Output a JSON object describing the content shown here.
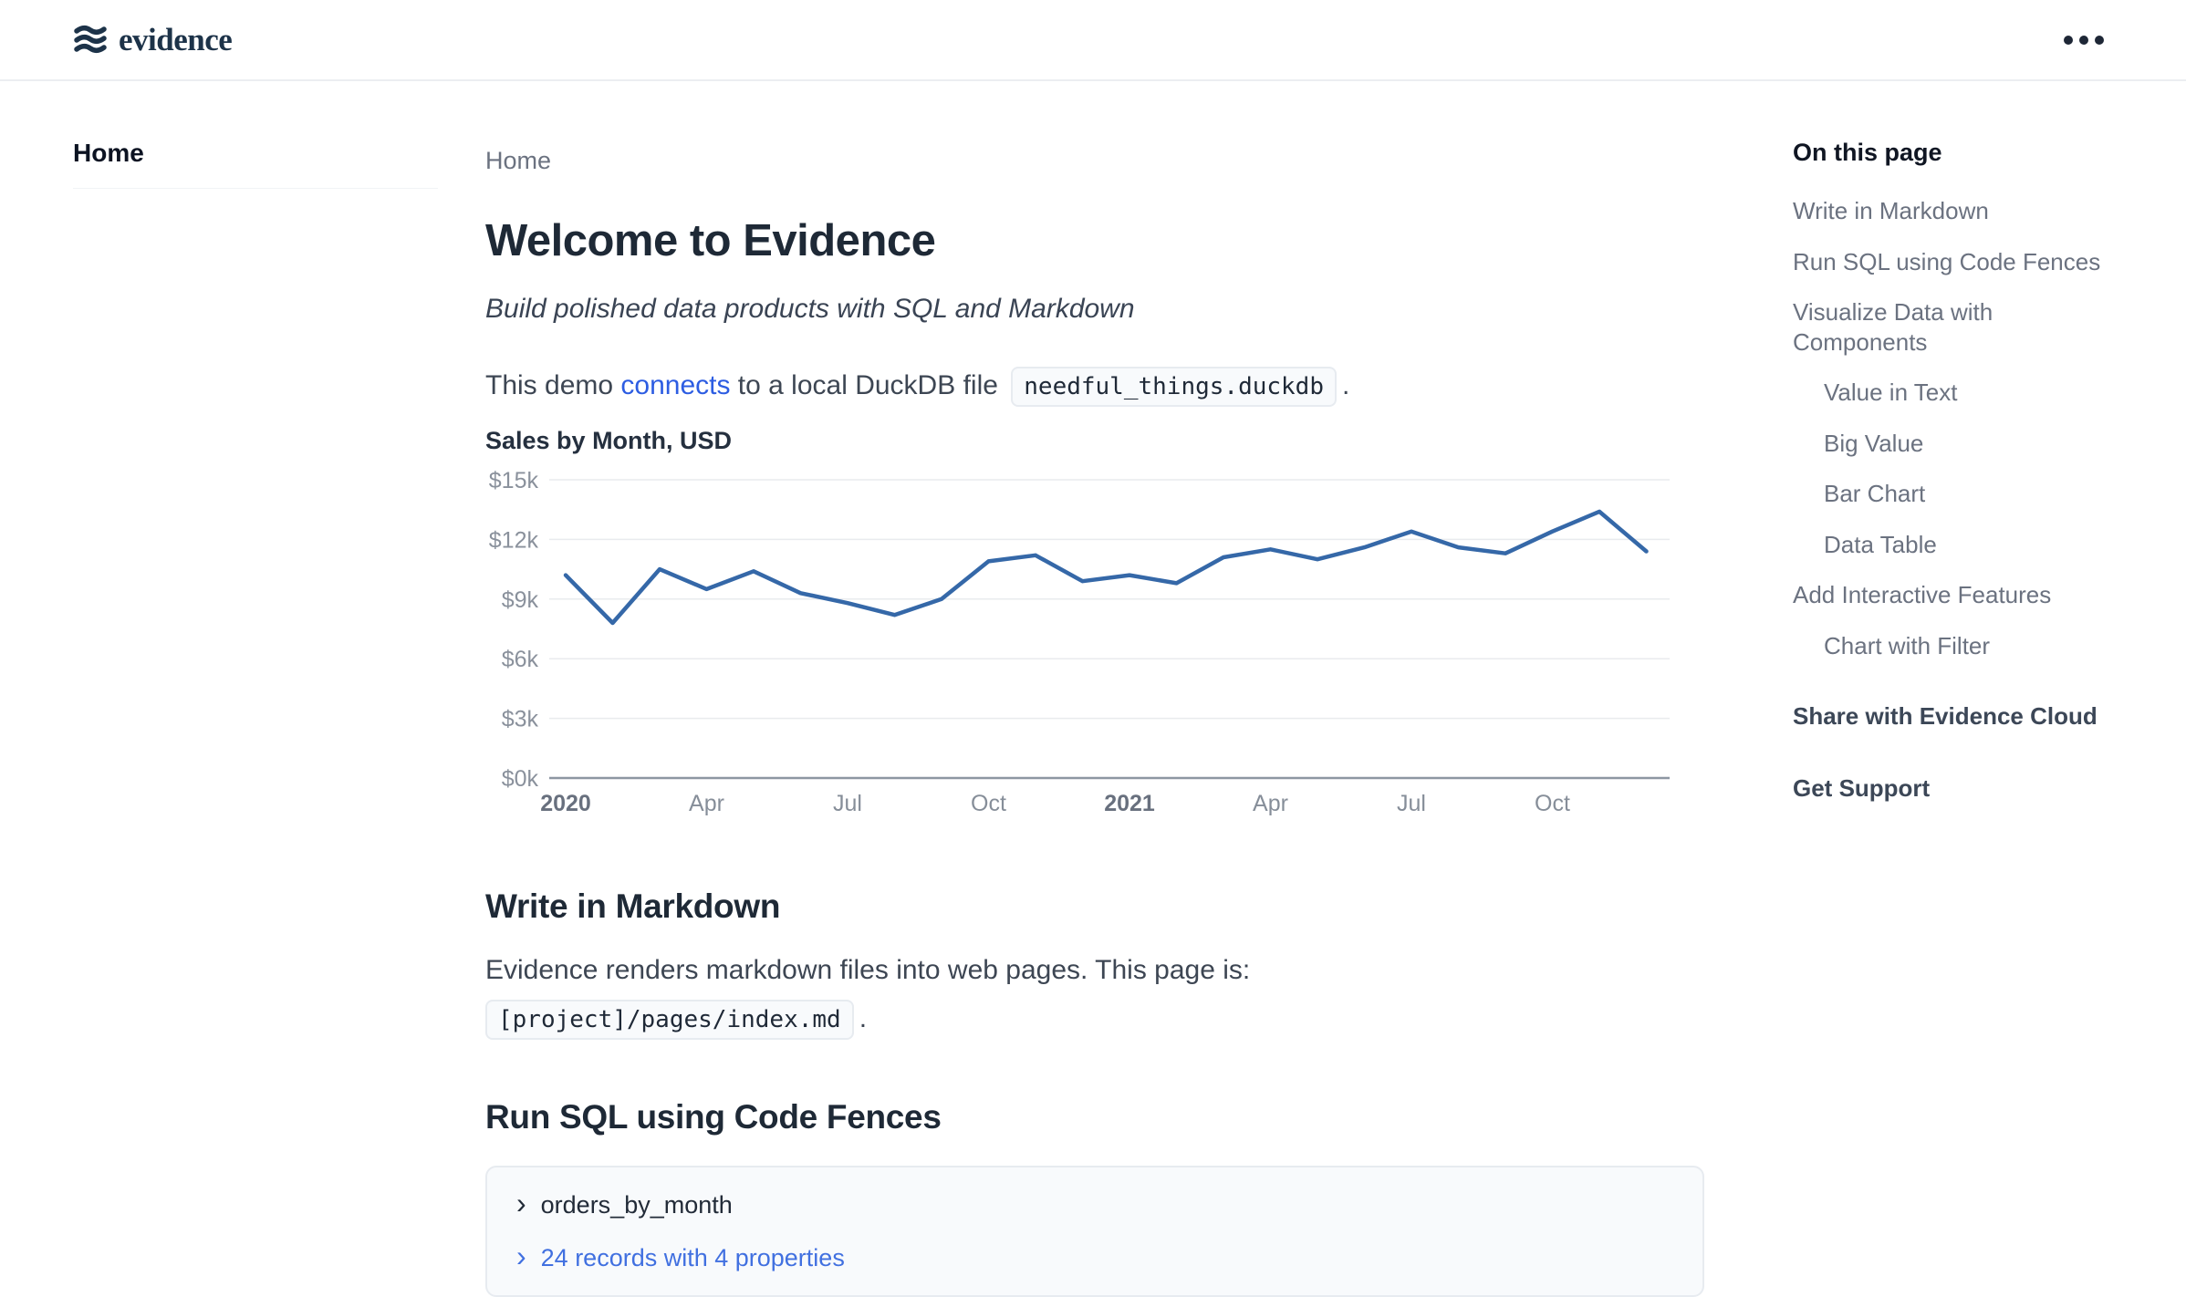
{
  "header": {
    "logo_text": "evidence"
  },
  "sidebar": {
    "items": [
      {
        "label": "Home",
        "active": true
      }
    ]
  },
  "main": {
    "breadcrumb": "Home",
    "title": "Welcome to Evidence",
    "subtitle": "Build polished data products with SQL and Markdown",
    "intro": {
      "pre": "This demo ",
      "link": "connects",
      "mid": " to a local DuckDB file ",
      "code": "needful_things.duckdb",
      "post": "."
    },
    "sections": {
      "markdown": {
        "heading": "Write in Markdown",
        "body": "Evidence renders markdown files into web pages. This page is:",
        "code": "[project]/pages/index.md",
        "post": "."
      },
      "sql": {
        "heading": "Run SQL using Code Fences",
        "query_name": "orders_by_month",
        "records_link": "24 records with 4 properties",
        "chevron": "›"
      }
    }
  },
  "chart_data": {
    "type": "line",
    "title": "Sales by Month, USD",
    "x": [
      "Jan 2020",
      "Feb 2020",
      "Mar 2020",
      "Apr 2020",
      "May 2020",
      "Jun 2020",
      "Jul 2020",
      "Aug 2020",
      "Sep 2020",
      "Oct 2020",
      "Nov 2020",
      "Dec 2020",
      "Jan 2021",
      "Feb 2021",
      "Mar 2021",
      "Apr 2021",
      "May 2021",
      "Jun 2021",
      "Jul 2021",
      "Aug 2021",
      "Sep 2021",
      "Oct 2021",
      "Nov 2021",
      "Dec 2021"
    ],
    "values": [
      10200,
      7800,
      10500,
      9500,
      10400,
      9300,
      8800,
      8200,
      9000,
      10900,
      11200,
      9900,
      10200,
      9800,
      11100,
      11500,
      11000,
      11600,
      12400,
      11600,
      11300,
      12400,
      13400,
      11400
    ],
    "xlabel": "",
    "ylabel": "",
    "ylim": [
      0,
      15000
    ],
    "grid": true,
    "legend": false,
    "y_ticks": [
      {
        "value": 0,
        "label": "$0k"
      },
      {
        "value": 3000,
        "label": "$3k"
      },
      {
        "value": 6000,
        "label": "$6k"
      },
      {
        "value": 9000,
        "label": "$9k"
      },
      {
        "value": 12000,
        "label": "$12k"
      },
      {
        "value": 15000,
        "label": "$15k"
      }
    ],
    "x_ticks": [
      {
        "index": 0,
        "label": "2020",
        "bold": true
      },
      {
        "index": 3,
        "label": "Apr",
        "bold": false
      },
      {
        "index": 6,
        "label": "Jul",
        "bold": false
      },
      {
        "index": 9,
        "label": "Oct",
        "bold": false
      },
      {
        "index": 12,
        "label": "2021",
        "bold": true
      },
      {
        "index": 15,
        "label": "Apr",
        "bold": false
      },
      {
        "index": 18,
        "label": "Jul",
        "bold": false
      },
      {
        "index": 21,
        "label": "Oct",
        "bold": false
      }
    ]
  },
  "toc": {
    "title": "On this page",
    "items": [
      {
        "label": "Write in Markdown",
        "level": 1
      },
      {
        "label": "Run SQL using Code Fences",
        "level": 1
      },
      {
        "label": "Visualize Data with Components",
        "level": 1
      },
      {
        "label": "Value in Text",
        "level": 2
      },
      {
        "label": "Big Value",
        "level": 2
      },
      {
        "label": "Bar Chart",
        "level": 2
      },
      {
        "label": "Data Table",
        "level": 2
      },
      {
        "label": "Add Interactive Features",
        "level": 1
      },
      {
        "label": "Chart with Filter",
        "level": 2
      }
    ],
    "footer_items": [
      "Share with Evidence Cloud",
      "Get Support"
    ]
  },
  "colors": {
    "logo_navy": "#1d3349",
    "link_blue": "#2d5de2",
    "records_blue": "#4170e0",
    "chart_line": "#3568a8"
  }
}
